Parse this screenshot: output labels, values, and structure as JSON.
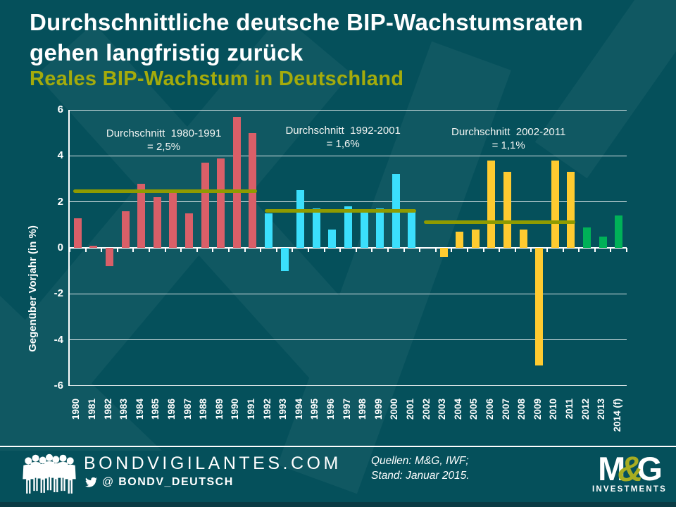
{
  "page": {
    "background": "#05505B"
  },
  "header": {
    "title_line1": "Durchschnittliche deutsche BIP-Wachstumsraten",
    "title_line2": "gehen langfristig zurück",
    "subtitle": "Reales BIP-Wachstum in Deutschland",
    "subtitle_color": "#A4AB0B"
  },
  "chart_data": {
    "type": "bar",
    "title": "Reales BIP-Wachstum in Deutschland",
    "xlabel": "",
    "ylabel": "Gegenüber Vorjahr (in %)",
    "ylim": [
      -6,
      6
    ],
    "yticks": [
      6,
      4,
      2,
      0,
      -2,
      -4,
      -6
    ],
    "grid": true,
    "legend": "none",
    "categories": [
      "1980",
      "1981",
      "1982",
      "1983",
      "1984",
      "1985",
      "1986",
      "1987",
      "1988",
      "1989",
      "1990",
      "1991",
      "1992",
      "1993",
      "1994",
      "1995",
      "1996",
      "1997",
      "1998",
      "1999",
      "2000",
      "2001",
      "2002",
      "2003",
      "2004",
      "2005",
      "2006",
      "2007",
      "2008",
      "2009",
      "2010",
      "2011",
      "2012",
      "2013",
      "2014 (f)"
    ],
    "values": [
      1.3,
      0.1,
      -0.8,
      1.6,
      2.8,
      2.2,
      2.4,
      1.5,
      3.7,
      3.9,
      5.7,
      5.0,
      1.5,
      -1.0,
      2.5,
      1.7,
      0.8,
      1.8,
      1.6,
      1.7,
      3.2,
      1.6,
      0.0,
      -0.4,
      0.7,
      0.8,
      3.8,
      3.3,
      0.8,
      -5.1,
      3.8,
      3.3,
      0.9,
      0.5,
      1.4
    ],
    "periods": [
      {
        "label_line1": "Durchschnitt  1980-1991",
        "label_line2": "= 2,5%",
        "start": "1980",
        "end": "1991",
        "average": 2.45,
        "bar_color": "#D95F68"
      },
      {
        "label_line1": "Durchschnitt  1992-2001",
        "label_line2": "= 1,6%",
        "start": "1992",
        "end": "2001",
        "average": 1.6,
        "bar_color": "#3BDFFC"
      },
      {
        "label_line1": "Durchschnitt  2002-2011",
        "label_line2": "= 1,1%",
        "start": "2002",
        "end": "2011",
        "average": 1.12,
        "bar_color": "#FFCB30"
      }
    ],
    "forecast": {
      "categories": [
        "2012",
        "2013",
        "2014 (f)"
      ],
      "bar_color": "#00B158"
    },
    "average_line_color": "#8F9B00"
  },
  "footer": {
    "site": "BONDVIGILANTES.COM",
    "handle_at": "@",
    "handle": "BONDV_DEUTSCH",
    "sources_line1": "Quellen: M&G, IWF;",
    "sources_line2": "Stand: Januar 2015.",
    "logo": {
      "m": "M",
      "amp": "&",
      "g": "G",
      "tagline": "INVESTMENTS",
      "amp_color": "#A8AD21"
    }
  }
}
